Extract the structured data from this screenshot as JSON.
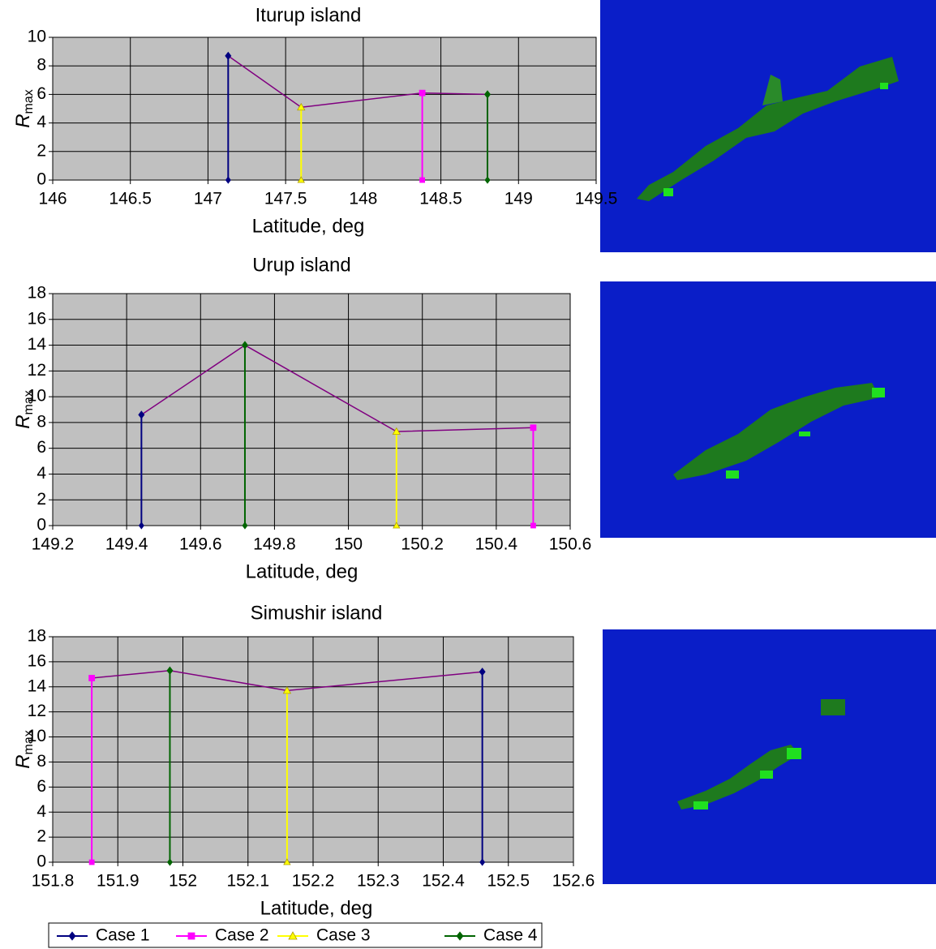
{
  "chart_data": [
    {
      "type": "stem",
      "title": "Iturup island",
      "xlabel": "Latitude, deg",
      "ylabel": {
        "text": "R",
        "subscript": "max"
      },
      "xlim": [
        146,
        149.5
      ],
      "xticks": [
        146,
        146.5,
        147,
        147.5,
        148,
        148.5,
        149,
        149.5
      ],
      "ylim": [
        0,
        10
      ],
      "yticks": [
        0,
        2,
        4,
        6,
        8,
        10
      ],
      "grid": true,
      "connector_color": "#800080",
      "series": [
        {
          "name": "Case 1",
          "color": "#000080",
          "x": [
            147.13
          ],
          "values": [
            8.7
          ]
        },
        {
          "name": "Case 2",
          "color": "#ff00ff",
          "x": [
            148.38
          ],
          "values": [
            6.1
          ]
        },
        {
          "name": "Case 3",
          "color": "#ffff00",
          "x": [
            147.6
          ],
          "values": [
            5.1
          ]
        },
        {
          "name": "Case 4",
          "color": "#006400",
          "x": [
            148.8
          ],
          "values": [
            6.0
          ]
        }
      ]
    },
    {
      "type": "stem",
      "title": "Urup island",
      "xlabel": "Latitude, deg",
      "ylabel": {
        "text": "R",
        "subscript": "max"
      },
      "xlim": [
        149.2,
        150.6
      ],
      "xticks": [
        149.2,
        149.4,
        149.6,
        149.8,
        150,
        150.2,
        150.4,
        150.6
      ],
      "ylim": [
        0,
        18
      ],
      "yticks": [
        0,
        2,
        4,
        6,
        8,
        10,
        12,
        14,
        16,
        18
      ],
      "grid": true,
      "connector_color": "#800080",
      "series": [
        {
          "x": [
            149.44
          ],
          "values": [
            8.6
          ]
        },
        {
          "x": [
            150.5
          ],
          "values": [
            7.6
          ]
        },
        {
          "x": [
            150.13
          ],
          "values": [
            7.3
          ]
        },
        {
          "x": [
            149.72
          ],
          "values": [
            14.0
          ]
        }
      ]
    },
    {
      "type": "stem",
      "title": "Simushir island",
      "xlabel": "Latitude, deg",
      "ylabel": {
        "text": "R",
        "subscript": "max"
      },
      "xlim": [
        151.8,
        152.6
      ],
      "xticks": [
        151.8,
        151.9,
        152,
        152.1,
        152.2,
        152.3,
        152.4,
        152.5,
        152.6
      ],
      "ylim": [
        0,
        18
      ],
      "yticks": [
        0,
        2,
        4,
        6,
        8,
        10,
        12,
        14,
        16,
        18
      ],
      "grid": true,
      "connector_color": "#800080",
      "series": [
        {
          "x": [
            152.46
          ],
          "values": [
            15.2
          ]
        },
        {
          "x": [
            151.86
          ],
          "values": [
            14.7
          ]
        },
        {
          "x": [
            152.16
          ],
          "values": [
            13.7
          ]
        },
        {
          "x": [
            151.98
          ],
          "values": [
            15.3
          ]
        }
      ]
    }
  ]
}
